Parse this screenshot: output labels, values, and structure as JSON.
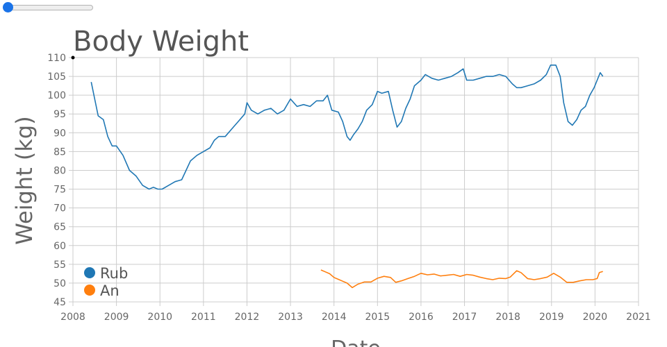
{
  "slider": {
    "value": 0
  },
  "chart_data": {
    "type": "line",
    "title": "Body Weight",
    "xlabel": "Date",
    "ylabel": "Weight (kg)",
    "xlim": [
      2008,
      2021
    ],
    "ylim": [
      45,
      110
    ],
    "x_ticks": [
      "2008",
      "2009",
      "2010",
      "2011",
      "2012",
      "2013",
      "2014",
      "2015",
      "2016",
      "2017",
      "2018",
      "2019",
      "2020",
      "2021"
    ],
    "y_ticks": [
      "45",
      "50",
      "55",
      "60",
      "65",
      "70",
      "75",
      "80",
      "85",
      "90",
      "95",
      "100",
      "105",
      "110"
    ],
    "grid": true,
    "legend_position": "bottom-left",
    "series": [
      {
        "name": "Rub",
        "color": "#1f77b4",
        "points": [
          [
            2008.42,
            103.5
          ],
          [
            2008.5,
            99
          ],
          [
            2008.58,
            94.5
          ],
          [
            2008.7,
            93.5
          ],
          [
            2008.8,
            89
          ],
          [
            2008.9,
            86.5
          ],
          [
            2009.0,
            86.5
          ],
          [
            2009.15,
            84
          ],
          [
            2009.3,
            80
          ],
          [
            2009.45,
            78.5
          ],
          [
            2009.6,
            76
          ],
          [
            2009.75,
            75
          ],
          [
            2009.85,
            75.5
          ],
          [
            2009.95,
            75
          ],
          [
            2010.05,
            75
          ],
          [
            2010.2,
            76
          ],
          [
            2010.35,
            77
          ],
          [
            2010.5,
            77.5
          ],
          [
            2010.6,
            80
          ],
          [
            2010.7,
            82.5
          ],
          [
            2010.85,
            84
          ],
          [
            2011.0,
            85
          ],
          [
            2011.15,
            86
          ],
          [
            2011.25,
            88
          ],
          [
            2011.35,
            89
          ],
          [
            2011.5,
            89
          ],
          [
            2011.65,
            91
          ],
          [
            2011.8,
            93
          ],
          [
            2011.95,
            95
          ],
          [
            2012.0,
            98
          ],
          [
            2012.1,
            96
          ],
          [
            2012.25,
            95
          ],
          [
            2012.4,
            96
          ],
          [
            2012.55,
            96.5
          ],
          [
            2012.7,
            95
          ],
          [
            2012.85,
            96
          ],
          [
            2013.0,
            99
          ],
          [
            2013.15,
            97
          ],
          [
            2013.3,
            97.5
          ],
          [
            2013.45,
            97
          ],
          [
            2013.6,
            98.5
          ],
          [
            2013.75,
            98.5
          ],
          [
            2013.85,
            100
          ],
          [
            2013.95,
            96
          ],
          [
            2014.1,
            95.5
          ],
          [
            2014.2,
            93
          ],
          [
            2014.3,
            89
          ],
          [
            2014.37,
            88
          ],
          [
            2014.45,
            89.5
          ],
          [
            2014.55,
            91
          ],
          [
            2014.65,
            93
          ],
          [
            2014.75,
            96
          ],
          [
            2014.88,
            97.5
          ],
          [
            2015.0,
            101
          ],
          [
            2015.1,
            100.5
          ],
          [
            2015.25,
            101
          ],
          [
            2015.35,
            96
          ],
          [
            2015.45,
            91.5
          ],
          [
            2015.55,
            93
          ],
          [
            2015.65,
            96.5
          ],
          [
            2015.75,
            99
          ],
          [
            2015.85,
            102.5
          ],
          [
            2016.0,
            104
          ],
          [
            2016.1,
            105.5
          ],
          [
            2016.25,
            104.5
          ],
          [
            2016.4,
            104
          ],
          [
            2016.55,
            104.5
          ],
          [
            2016.7,
            105
          ],
          [
            2016.85,
            106
          ],
          [
            2016.97,
            107
          ],
          [
            2017.05,
            104
          ],
          [
            2017.2,
            104
          ],
          [
            2017.35,
            104.5
          ],
          [
            2017.5,
            105
          ],
          [
            2017.65,
            105
          ],
          [
            2017.8,
            105.5
          ],
          [
            2017.95,
            105
          ],
          [
            2018.1,
            103
          ],
          [
            2018.2,
            102
          ],
          [
            2018.3,
            102
          ],
          [
            2018.45,
            102.5
          ],
          [
            2018.6,
            103
          ],
          [
            2018.75,
            104
          ],
          [
            2018.88,
            105.5
          ],
          [
            2018.98,
            108
          ],
          [
            2019.1,
            108
          ],
          [
            2019.2,
            105
          ],
          [
            2019.28,
            98
          ],
          [
            2019.38,
            93
          ],
          [
            2019.48,
            92
          ],
          [
            2019.58,
            93.5
          ],
          [
            2019.68,
            96
          ],
          [
            2019.78,
            97
          ],
          [
            2019.88,
            100
          ],
          [
            2019.98,
            102
          ],
          [
            2020.05,
            104
          ],
          [
            2020.12,
            106
          ],
          [
            2020.18,
            105
          ]
        ]
      },
      {
        "name": "An",
        "color": "#ff7f0e",
        "points": [
          [
            2013.7,
            53.5
          ],
          [
            2013.8,
            53
          ],
          [
            2013.9,
            52.5
          ],
          [
            2014.0,
            51.5
          ],
          [
            2014.1,
            51
          ],
          [
            2014.2,
            50.5
          ],
          [
            2014.3,
            50
          ],
          [
            2014.42,
            48.8
          ],
          [
            2014.55,
            49.7
          ],
          [
            2014.7,
            50.3
          ],
          [
            2014.85,
            50.3
          ],
          [
            2015.0,
            51.3
          ],
          [
            2015.15,
            51.8
          ],
          [
            2015.3,
            51.5
          ],
          [
            2015.42,
            50.2
          ],
          [
            2015.55,
            50.6
          ],
          [
            2015.7,
            51.2
          ],
          [
            2015.85,
            51.8
          ],
          [
            2016.0,
            52.6
          ],
          [
            2016.15,
            52.2
          ],
          [
            2016.3,
            52.4
          ],
          [
            2016.45,
            51.9
          ],
          [
            2016.6,
            52.1
          ],
          [
            2016.75,
            52.3
          ],
          [
            2016.9,
            51.8
          ],
          [
            2017.05,
            52.3
          ],
          [
            2017.2,
            52.1
          ],
          [
            2017.35,
            51.6
          ],
          [
            2017.5,
            51.2
          ],
          [
            2017.65,
            50.9
          ],
          [
            2017.8,
            51.3
          ],
          [
            2017.95,
            51.2
          ],
          [
            2018.05,
            51.6
          ],
          [
            2018.2,
            53.3
          ],
          [
            2018.3,
            52.8
          ],
          [
            2018.45,
            51.2
          ],
          [
            2018.6,
            50.9
          ],
          [
            2018.75,
            51.2
          ],
          [
            2018.9,
            51.6
          ],
          [
            2019.05,
            52.6
          ],
          [
            2019.2,
            51.6
          ],
          [
            2019.35,
            50.2
          ],
          [
            2019.5,
            50.2
          ],
          [
            2019.65,
            50.6
          ],
          [
            2019.8,
            50.9
          ],
          [
            2019.95,
            50.9
          ],
          [
            2020.05,
            51.2
          ],
          [
            2020.1,
            52.8
          ],
          [
            2020.18,
            53.1
          ]
        ]
      }
    ]
  }
}
